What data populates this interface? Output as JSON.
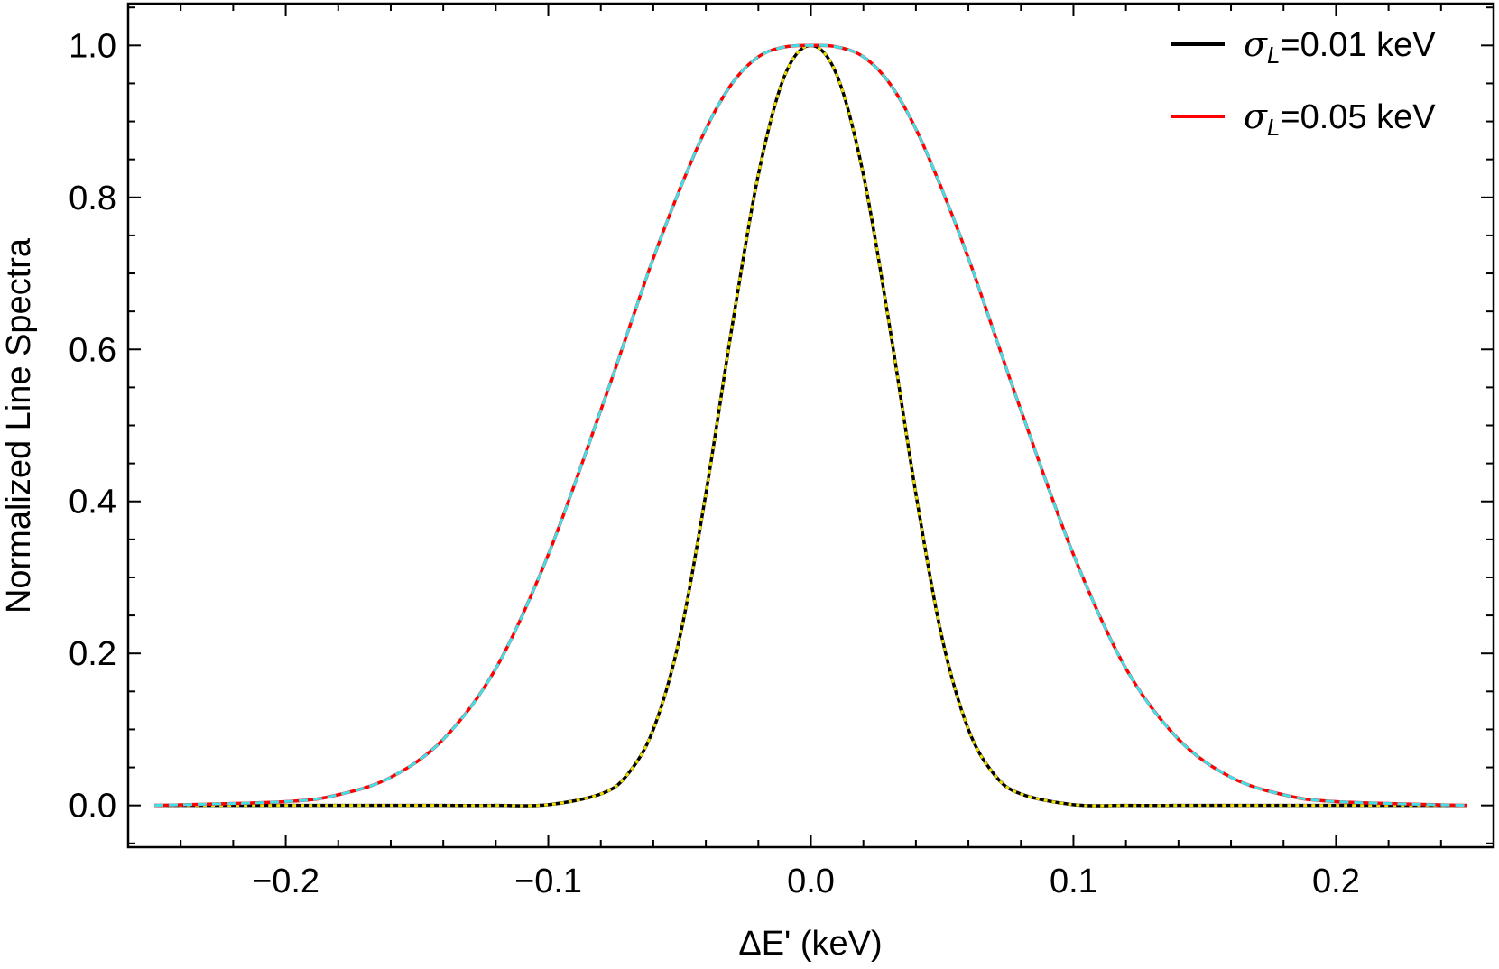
{
  "chart_data": {
    "type": "line",
    "xlabel": "ΔE' (keV)",
    "ylabel": "Normalized Line Spectra",
    "xlim": [
      -0.26,
      0.26
    ],
    "ylim": [
      -0.055,
      1.055
    ],
    "x_ticks": [
      {
        "value": -0.2,
        "label": "−0.2"
      },
      {
        "value": -0.1,
        "label": "−0.1"
      },
      {
        "value": 0.0,
        "label": "0.0"
      },
      {
        "value": 0.1,
        "label": "0.1"
      },
      {
        "value": 0.2,
        "label": "0.2"
      }
    ],
    "y_ticks": [
      {
        "value": 0.0,
        "label": "0.0"
      },
      {
        "value": 0.2,
        "label": "0.2"
      },
      {
        "value": 0.4,
        "label": "0.4"
      },
      {
        "value": 0.6,
        "label": "0.6"
      },
      {
        "value": 0.8,
        "label": "0.8"
      },
      {
        "value": 1.0,
        "label": "1.0"
      }
    ],
    "legend_position": "top-right",
    "x": [
      -0.25,
      -0.2,
      -0.18,
      -0.16,
      -0.14,
      -0.12,
      -0.1,
      -0.08,
      -0.07,
      -0.06,
      -0.05,
      -0.04,
      -0.03,
      -0.02,
      -0.01,
      0.0,
      0.01,
      0.02,
      0.03,
      0.04,
      0.05,
      0.06,
      0.07,
      0.08,
      0.1,
      0.12,
      0.14,
      0.16,
      0.18,
      0.2,
      0.25
    ],
    "series": [
      {
        "name": "σ_L=0.01 keV",
        "legend_symbol": "σ",
        "legend_sub": "L",
        "legend_rest": "=0.01 keV",
        "color": "#000000",
        "overlay_color": "#f0e000",
        "overlay_style": "dotted",
        "values": [
          0.0,
          0.0,
          0.0,
          0.0,
          0.0,
          0.0,
          0.001,
          0.015,
          0.04,
          0.1,
          0.22,
          0.41,
          0.63,
          0.83,
          0.96,
          1.0,
          0.96,
          0.83,
          0.63,
          0.41,
          0.22,
          0.1,
          0.04,
          0.015,
          0.001,
          0.0,
          0.0,
          0.0,
          0.0,
          0.0,
          0.0
        ]
      },
      {
        "name": "σ_L=0.05 keV",
        "legend_symbol": "σ",
        "legend_sub": "L",
        "legend_rest": "=0.05 keV",
        "color": "#ff0000",
        "overlay_color": "#40e0e8",
        "overlay_style": "dashed",
        "values": [
          0.0,
          0.005,
          0.014,
          0.037,
          0.087,
          0.18,
          0.33,
          0.52,
          0.62,
          0.72,
          0.81,
          0.89,
          0.95,
          0.985,
          0.998,
          1.0,
          0.998,
          0.985,
          0.95,
          0.89,
          0.81,
          0.72,
          0.62,
          0.52,
          0.33,
          0.18,
          0.087,
          0.037,
          0.014,
          0.005,
          0.0
        ]
      }
    ]
  }
}
